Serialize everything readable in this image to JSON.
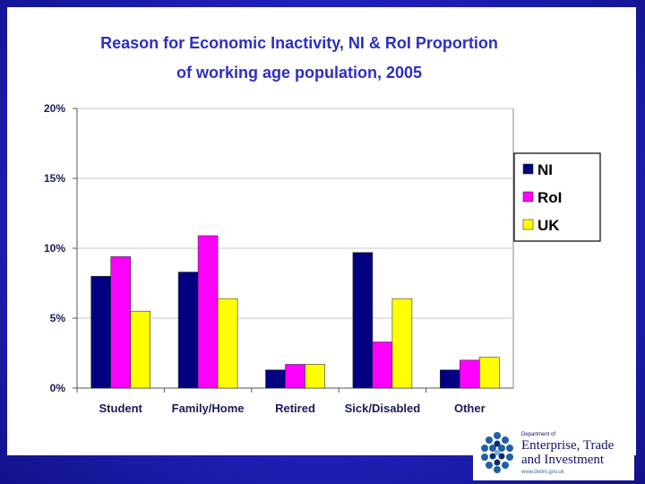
{
  "chart_data": {
    "type": "bar",
    "title": [
      "Reason for Economic Inactivity, NI & RoI  Proportion",
      "of working age population, 2005"
    ],
    "categories": [
      "Student",
      "Family/Home",
      "Retired",
      "Sick/Disabled",
      "Other"
    ],
    "series": [
      {
        "name": "NI",
        "color": "#000080",
        "values": [
          8.0,
          8.3,
          1.3,
          9.7,
          1.3
        ]
      },
      {
        "name": "RoI",
        "color": "#ff00ff",
        "values": [
          9.4,
          10.9,
          1.7,
          3.3,
          2.0
        ]
      },
      {
        "name": "UK",
        "color": "#ffff00",
        "values": [
          5.5,
          6.4,
          1.7,
          6.4,
          2.2
        ]
      }
    ],
    "yticks": [
      "0%",
      "5%",
      "10%",
      "15%",
      "20%"
    ],
    "ylim": [
      0,
      20
    ],
    "grid": true,
    "legend_position": "right"
  },
  "logo": {
    "dept": "Department of",
    "line1": "Enterprise, Trade",
    "line2": "and Investment",
    "url": "www.detini.gov.uk"
  }
}
